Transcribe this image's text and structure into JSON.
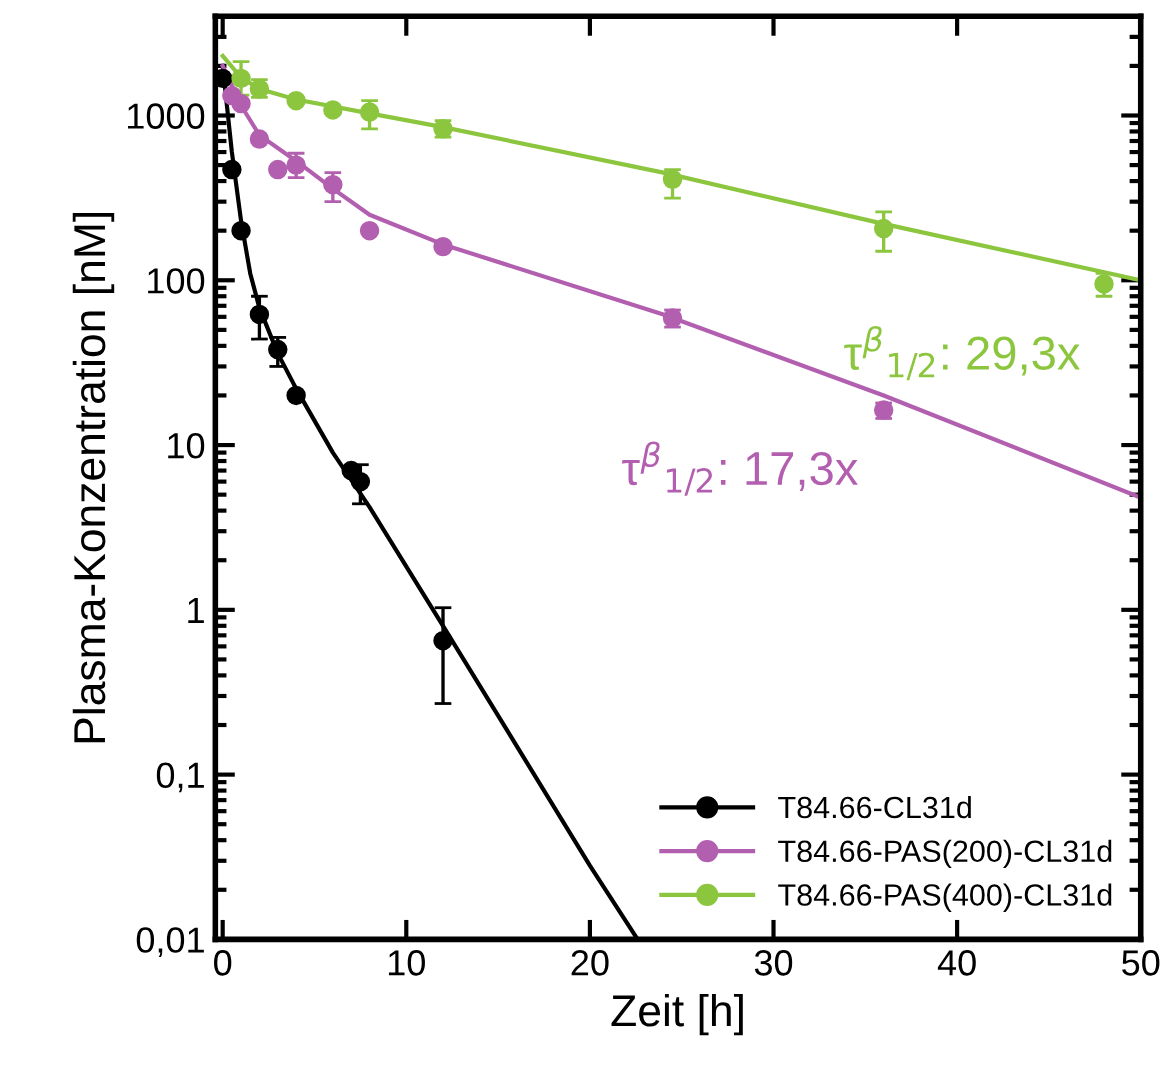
{
  "chart_data": {
    "type": "scatter",
    "xlabel": "Zeit [h]",
    "ylabel": "Plasma-Konzentration [nM]",
    "log": "y",
    "xlim": [
      -0.4,
      50
    ],
    "ylim": [
      0.01,
      4000
    ],
    "xticks": [
      0,
      10,
      20,
      30,
      40,
      50
    ],
    "yticks": [
      {
        "value": 0.01,
        "label": "0,01"
      },
      {
        "value": 0.1,
        "label": "0,1"
      },
      1,
      10,
      100,
      1000
    ],
    "grid": false,
    "legend": "bottom right",
    "series": [
      {
        "name": "T84.66-CL31d",
        "color": "#000000",
        "marker": "circle",
        "x": [
          0,
          0.5,
          1,
          2,
          3,
          4,
          7,
          7.5,
          12
        ],
        "values": [
          1680,
          470,
          200,
          62,
          38,
          20,
          7,
          6,
          0.65
        ],
        "errors": [
          null,
          null,
          null,
          [
            44,
            80
          ],
          [
            30,
            45
          ],
          null,
          null,
          [
            4.4,
            7.6
          ],
          [
            0.27,
            1.03
          ]
        ]
      },
      {
        "name": "T84.66-PAS(200)-CL31d",
        "color": "#b35fb0",
        "marker": "circle",
        "x": [
          0.5,
          1,
          2,
          3,
          4,
          6,
          8,
          12,
          24.5,
          36
        ],
        "values": [
          1320,
          1180,
          720,
          470,
          500,
          380,
          200,
          160,
          59,
          16.3
        ],
        "errors": [
          null,
          null,
          null,
          null,
          [
            420,
            590
          ],
          [
            300,
            450
          ],
          null,
          null,
          [
            52,
            66
          ],
          [
            14.5,
            18
          ]
        ]
      },
      {
        "name": "T84.66-PAS(400)-CL31d",
        "color": "#8cc63f",
        "marker": "circle",
        "x": [
          1,
          2,
          4,
          6,
          8,
          12,
          24.5,
          36,
          48
        ],
        "values": [
          1680,
          1450,
          1230,
          1080,
          1050,
          830,
          410,
          206,
          95
        ],
        "errors": [
          [
            1330,
            2120
          ],
          [
            1290,
            1650
          ],
          null,
          null,
          [
            830,
            1230
          ],
          [
            740,
            930
          ],
          [
            315,
            470
          ],
          [
            150,
            260
          ],
          [
            80,
            110
          ]
        ]
      },
      {
        "type": "line",
        "color": "#000000",
        "x": [
          0,
          0.5,
          1,
          1.5,
          2,
          3,
          4,
          6,
          8,
          12,
          16,
          20,
          22.6
        ],
        "values": [
          2000,
          600,
          230,
          110,
          68,
          36,
          22,
          9,
          4.2,
          0.8,
          0.15,
          0.028,
          0.01
        ]
      },
      {
        "type": "line",
        "color": "#b35fb0",
        "x": [
          0,
          1,
          2,
          4,
          6,
          8,
          12,
          24,
          36,
          50
        ],
        "values": [
          2000,
          1150,
          760,
          530,
          360,
          250,
          165,
          62,
          20,
          4.8
        ]
      },
      {
        "type": "line",
        "color": "#8cc63f",
        "x": [
          0,
          1,
          2,
          4,
          8,
          12,
          24,
          36,
          50
        ],
        "values": [
          2300,
          1700,
          1450,
          1250,
          1030,
          850,
          450,
          220,
          100
        ]
      }
    ],
    "annotations": [
      "τ$^{β}$$_{1/2}$: 29,3x",
      "τ$^{β}$$_{1/2}$: 17,3x"
    ]
  }
}
